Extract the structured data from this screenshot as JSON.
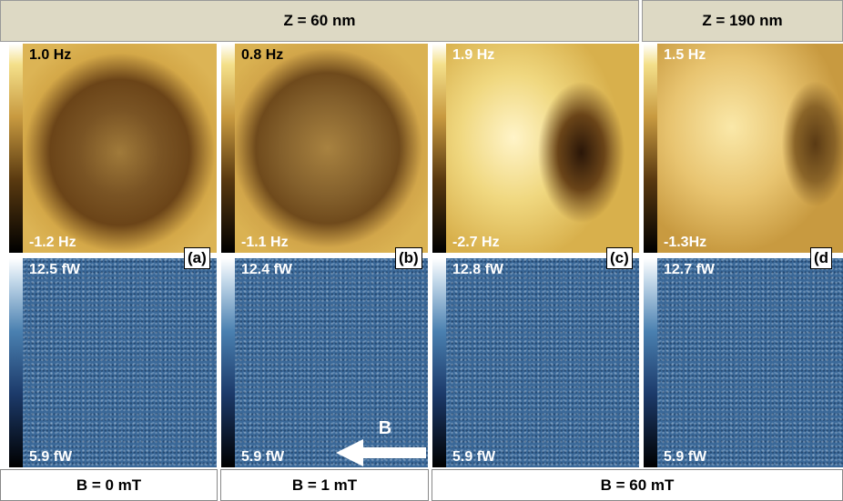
{
  "header": {
    "left": "Z = 60 nm",
    "right": "Z = 190 nm"
  },
  "panels": [
    {
      "letter": "(a)",
      "top_max": "1.0 Hz",
      "top_min": "-1.2 Hz",
      "bottom_max": "12.5 fW",
      "bottom_min": "5.9 fW"
    },
    {
      "letter": "(b)",
      "top_max": "0.8 Hz",
      "top_min": "-1.1 Hz",
      "bottom_max": "12.4 fW",
      "bottom_min": "5.9 fW"
    },
    {
      "letter": "(c)",
      "top_max": "1.9 Hz",
      "top_min": "-2.7 Hz",
      "bottom_max": "12.8 fW",
      "bottom_min": "5.9 fW"
    },
    {
      "letter": "(d",
      "top_max": "1.5 Hz",
      "top_min": "-1.3Hz",
      "bottom_max": "12.7 fW",
      "bottom_min": "5.9 fW"
    }
  ],
  "arrow_label": "B",
  "footer": [
    "B = 0 mT",
    "B = 1 mT",
    "B = 60 mT"
  ]
}
